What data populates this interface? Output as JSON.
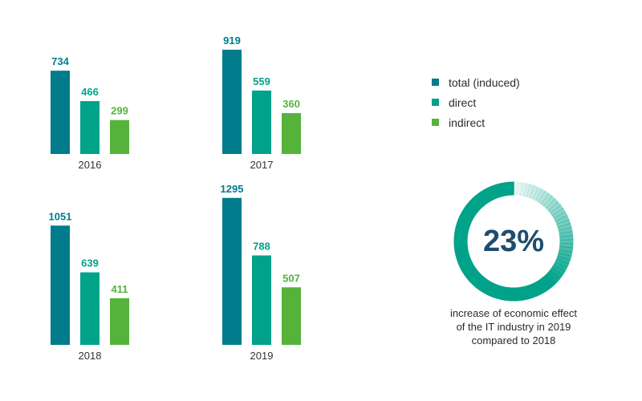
{
  "chart_data": {
    "type": "bar",
    "panels": [
      {
        "label": "2016",
        "values": [
          734,
          466,
          299
        ]
      },
      {
        "label": "2017",
        "values": [
          919,
          559,
          360
        ]
      },
      {
        "label": "2018",
        "values": [
          1051,
          639,
          411
        ]
      },
      {
        "label": "2019",
        "values": [
          1295,
          788,
          507
        ]
      }
    ],
    "series": [
      {
        "name": "total (induced)",
        "color": "#007c8c"
      },
      {
        "name": "direct",
        "color": "#00a28a"
      },
      {
        "name": "indirect",
        "color": "#55b33b"
      }
    ],
    "value_label_colors": [
      "#007c8c",
      "#00a28a",
      "#55b33b"
    ],
    "legend_position": "right"
  },
  "highlight": {
    "value_text": "23%",
    "percent": 23,
    "caption": [
      "increase of economic effect",
      "of the IT industry in 2019",
      "compared to 2018"
    ],
    "ring_color": "#00a28a"
  }
}
